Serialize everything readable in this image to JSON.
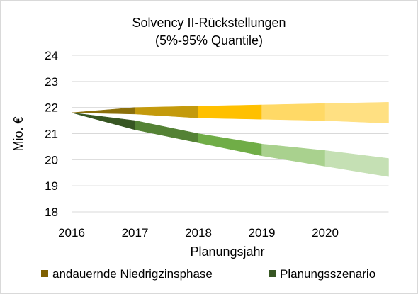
{
  "chart_data": {
    "type": "area",
    "title": "Solvency II-Rückstellungen",
    "subtitle": "(5%-95% Quantile)",
    "xlabel": "Planungsjahr",
    "ylabel": "Mio. €",
    "x_ticks": [
      "2016",
      "2017",
      "2018",
      "2019",
      "2020"
    ],
    "y_ticks": [
      "24",
      "23",
      "22",
      "21",
      "20",
      "19",
      "18"
    ],
    "ylim": [
      18,
      24
    ],
    "grid": true,
    "legend_position": "bottom",
    "x": [
      2016,
      2017,
      2018,
      2019,
      2020,
      2021
    ],
    "series": [
      {
        "name": "andauernde Niedrigzinsphase",
        "lower": [
          21.8,
          21.75,
          21.6,
          21.55,
          21.5,
          21.4
        ],
        "upper": [
          21.8,
          22.0,
          22.05,
          22.1,
          22.15,
          22.2
        ],
        "colors": [
          "#8b6f0b",
          "#c49a0c",
          "#ffc000",
          "#ffd966",
          "#ffe082"
        ],
        "legend_color": "#7f6000"
      },
      {
        "name": "Planungsszenario",
        "lower": [
          21.8,
          21.15,
          20.65,
          20.15,
          19.75,
          19.35
        ],
        "upper": [
          21.8,
          21.5,
          21.0,
          20.6,
          20.35,
          20.05
        ],
        "colors": [
          "#375623",
          "#548235",
          "#70ad47",
          "#a9d18e",
          "#c5e0b4"
        ],
        "legend_color": "#375623"
      }
    ]
  }
}
